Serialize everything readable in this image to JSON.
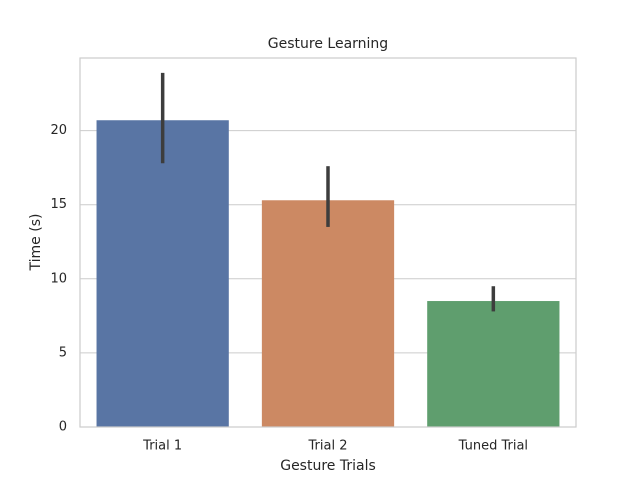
{
  "chart_data": {
    "type": "bar",
    "title": "Gesture Learning",
    "x_label": "Gesture Trials",
    "y_label": "Time (s)",
    "categories": [
      "Trial 1",
      "Trial 2",
      "Tuned Trial"
    ],
    "values": [
      20.7,
      15.3,
      8.5
    ],
    "ci_low": [
      17.8,
      13.5,
      7.8
    ],
    "ci_high": [
      23.9,
      17.6,
      9.5
    ],
    "colors": [
      "#5975a4",
      "#cc8963",
      "#5f9e6e"
    ],
    "ylim": [
      0,
      24.9
    ],
    "yticks": [
      0,
      5,
      10,
      15,
      20
    ],
    "grid": true
  }
}
